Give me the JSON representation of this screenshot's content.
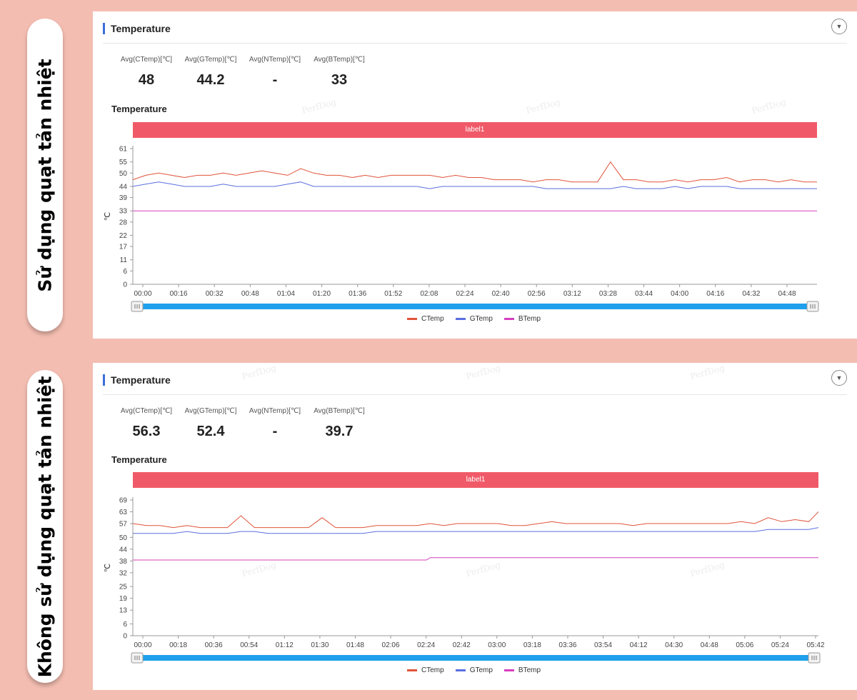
{
  "side_labels": [
    "Sử dụng quạt tản nhiệt",
    "Không sử dụng quạt tản nhiệt"
  ],
  "watermark": "PerfDog",
  "colors": {
    "ctemp": "#e0533a",
    "gtemp": "#5a6fe0",
    "btemp": "#d63fbf",
    "band": "#f05a68",
    "scroll": "#1ea0ec"
  },
  "panels": [
    {
      "header_title": "Temperature",
      "stats": [
        {
          "label": "Avg(CTemp)[℃]",
          "value": "48"
        },
        {
          "label": "Avg(GTemp)[℃]",
          "value": "44.2"
        },
        {
          "label": "Avg(NTemp)[℃]",
          "value": "-"
        },
        {
          "label": "Avg(BTemp)[℃]",
          "value": "33"
        }
      ],
      "chart_title": "Temperature",
      "band_label": "label1",
      "legend": [
        "CTemp",
        "GTemp",
        "BTemp"
      ]
    },
    {
      "header_title": "Temperature",
      "stats": [
        {
          "label": "Avg(CTemp)[℃]",
          "value": "56.3"
        },
        {
          "label": "Avg(GTemp)[℃]",
          "value": "52.4"
        },
        {
          "label": "Avg(NTemp)[℃]",
          "value": "-"
        },
        {
          "label": "Avg(BTemp)[℃]",
          "value": "39.7"
        }
      ],
      "chart_title": "Temperature",
      "band_label": "label1",
      "legend": [
        "CTemp",
        "GTemp",
        "BTemp"
      ]
    }
  ],
  "chart_data": [
    {
      "type": "line",
      "title": "Temperature",
      "ylabel": "℃",
      "ylim": [
        0,
        61
      ],
      "yticks": [
        "0",
        "6",
        "11",
        "17",
        "22",
        "28",
        "33",
        "39",
        "44",
        "50",
        "55",
        "61"
      ],
      "xticks": [
        "00:00",
        "00:16",
        "00:32",
        "00:48",
        "01:04",
        "01:20",
        "01:36",
        "01:52",
        "02:08",
        "02:24",
        "02:40",
        "02:56",
        "03:12",
        "03:28",
        "03:44",
        "04:00",
        "04:16",
        "04:32",
        "04:48"
      ],
      "xlim_seconds": [
        0,
        3180
      ],
      "grid": false,
      "legend_position": "bottom",
      "series": [
        {
          "name": "CTemp",
          "x": [
            0,
            60,
            120,
            180,
            240,
            300,
            360,
            420,
            480,
            540,
            600,
            660,
            720,
            780,
            840,
            900,
            960,
            1020,
            1080,
            1140,
            1200,
            1260,
            1320,
            1380,
            1440,
            1500,
            1560,
            1620,
            1680,
            1740,
            1800,
            1860,
            1920,
            1980,
            2040,
            2100,
            2160,
            2220,
            2280,
            2340,
            2400,
            2460,
            2520,
            2580,
            2640,
            2700,
            2760,
            2820,
            2880,
            2940,
            3000,
            3060,
            3120,
            3180
          ],
          "y": [
            47,
            49,
            50,
            49,
            48,
            49,
            49,
            50,
            49,
            50,
            51,
            50,
            49,
            52,
            50,
            49,
            49,
            48,
            49,
            48,
            49,
            49,
            49,
            49,
            48,
            49,
            48,
            48,
            47,
            47,
            47,
            46,
            47,
            47,
            46,
            46,
            46,
            55,
            47,
            47,
            46,
            46,
            47,
            46,
            47,
            47,
            48,
            46,
            47,
            47,
            46,
            47,
            46,
            46
          ]
        },
        {
          "name": "GTemp",
          "x": [
            0,
            60,
            120,
            180,
            240,
            300,
            360,
            420,
            480,
            540,
            600,
            660,
            720,
            780,
            840,
            900,
            960,
            1020,
            1080,
            1140,
            1200,
            1260,
            1320,
            1380,
            1440,
            1500,
            1560,
            1620,
            1680,
            1740,
            1800,
            1860,
            1920,
            1980,
            2040,
            2100,
            2160,
            2220,
            2280,
            2340,
            2400,
            2460,
            2520,
            2580,
            2640,
            2700,
            2760,
            2820,
            2880,
            2940,
            3000,
            3060,
            3120,
            3180
          ],
          "y": [
            44,
            45,
            46,
            45,
            44,
            44,
            44,
            45,
            44,
            44,
            44,
            44,
            45,
            46,
            44,
            44,
            44,
            44,
            44,
            44,
            44,
            44,
            44,
            43,
            44,
            44,
            44,
            44,
            44,
            44,
            44,
            44,
            43,
            43,
            43,
            43,
            43,
            43,
            44,
            43,
            43,
            43,
            44,
            43,
            44,
            44,
            44,
            43,
            43,
            43,
            43,
            43,
            43,
            43
          ]
        },
        {
          "name": "BTemp",
          "x": [
            0,
            3180
          ],
          "y": [
            33,
            33
          ]
        }
      ]
    },
    {
      "type": "line",
      "title": "Temperature",
      "ylabel": "℃",
      "ylim": [
        0,
        69
      ],
      "yticks": [
        "0",
        "6",
        "13",
        "19",
        "25",
        "32",
        "38",
        "44",
        "50",
        "57",
        "63",
        "69"
      ],
      "xticks": [
        "00:00",
        "00:18",
        "00:36",
        "00:54",
        "01:12",
        "01:30",
        "01:48",
        "02:06",
        "02:24",
        "02:42",
        "03:00",
        "03:18",
        "03:36",
        "03:54",
        "04:12",
        "04:30",
        "04:48",
        "05:06",
        "05:24",
        "05:42"
      ],
      "xlim_seconds": [
        0,
        3550
      ],
      "grid": false,
      "legend_position": "bottom",
      "series": [
        {
          "name": "CTemp",
          "x": [
            0,
            70,
            140,
            210,
            280,
            350,
            420,
            490,
            560,
            630,
            700,
            770,
            840,
            910,
            980,
            1050,
            1120,
            1190,
            1260,
            1330,
            1400,
            1470,
            1540,
            1610,
            1680,
            1750,
            1820,
            1890,
            1960,
            2030,
            2100,
            2170,
            2240,
            2310,
            2380,
            2450,
            2520,
            2590,
            2660,
            2730,
            2800,
            2870,
            2940,
            3010,
            3080,
            3150,
            3220,
            3290,
            3360,
            3430,
            3500,
            3550
          ],
          "y": [
            57,
            56,
            56,
            55,
            56,
            55,
            55,
            55,
            61,
            55,
            55,
            55,
            55,
            55,
            60,
            55,
            55,
            55,
            56,
            56,
            56,
            56,
            57,
            56,
            57,
            57,
            57,
            57,
            56,
            56,
            57,
            58,
            57,
            57,
            57,
            57,
            57,
            56,
            57,
            57,
            57,
            57,
            57,
            57,
            57,
            58,
            57,
            60,
            58,
            59,
            58,
            63
          ]
        },
        {
          "name": "GTemp",
          "x": [
            0,
            70,
            140,
            210,
            280,
            350,
            420,
            490,
            560,
            630,
            700,
            770,
            840,
            910,
            980,
            1050,
            1120,
            1190,
            1260,
            1330,
            1400,
            1470,
            1540,
            1610,
            1680,
            1750,
            1820,
            1890,
            1960,
            2030,
            2100,
            2170,
            2240,
            2310,
            2380,
            2450,
            2520,
            2590,
            2660,
            2730,
            2800,
            2870,
            2940,
            3010,
            3080,
            3150,
            3220,
            3290,
            3360,
            3430,
            3500,
            3550
          ],
          "y": [
            52,
            52,
            52,
            52,
            53,
            52,
            52,
            52,
            53,
            53,
            52,
            52,
            52,
            52,
            52,
            52,
            52,
            52,
            53,
            53,
            53,
            53,
            53,
            53,
            53,
            53,
            53,
            53,
            53,
            53,
            53,
            53,
            53,
            53,
            53,
            53,
            53,
            53,
            53,
            53,
            53,
            53,
            53,
            53,
            53,
            53,
            53,
            54,
            54,
            54,
            54,
            55
          ]
        },
        {
          "name": "BTemp",
          "x": [
            0,
            1520,
            1540,
            3550
          ],
          "y": [
            38.5,
            38.5,
            39.7,
            39.7
          ]
        }
      ]
    }
  ]
}
